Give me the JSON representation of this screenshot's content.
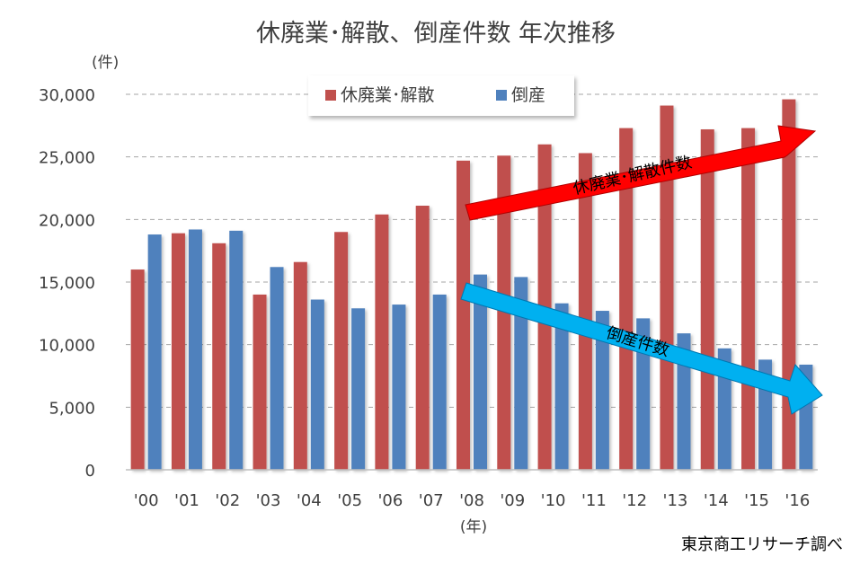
{
  "chart_data": {
    "type": "bar",
    "title": "休廃業･解散、倒産件数 年次推移",
    "ylabel": "(件)",
    "xlabel": "(年)",
    "categories": [
      "'00",
      "'01",
      "'02",
      "'03",
      "'04",
      "'05",
      "'06",
      "'07",
      "'08",
      "'09",
      "'10",
      "'11",
      "'12",
      "'13",
      "'14",
      "'15",
      "'16"
    ],
    "series": [
      {
        "name": "休廃業･解散",
        "color": "#c0504d",
        "values": [
          16000,
          18900,
          18100,
          14000,
          16600,
          19000,
          20400,
          21100,
          24700,
          25100,
          26000,
          25300,
          27300,
          29100,
          27200,
          27300,
          29600
        ]
      },
      {
        "name": "倒産",
        "color": "#4f81bd",
        "values": [
          18800,
          19200,
          19100,
          16200,
          13600,
          12900,
          13200,
          14000,
          15600,
          15400,
          13300,
          12700,
          12100,
          10900,
          9700,
          8800,
          8400
        ]
      }
    ],
    "ylim": [
      0,
      30000
    ],
    "yticks": [
      "0",
      "5,000",
      "10,000",
      "15,000",
      "20,000",
      "25,000",
      "30,000"
    ],
    "grid": true,
    "legend_position": "top-center",
    "annotations": [
      {
        "text": "休廃業･解散件数",
        "color": "#ff0000",
        "direction": "up-right"
      },
      {
        "text": "倒産件数",
        "color": "#00b0f0",
        "direction": "down-right"
      }
    ],
    "source": "東京商工リサーチ調べ"
  }
}
